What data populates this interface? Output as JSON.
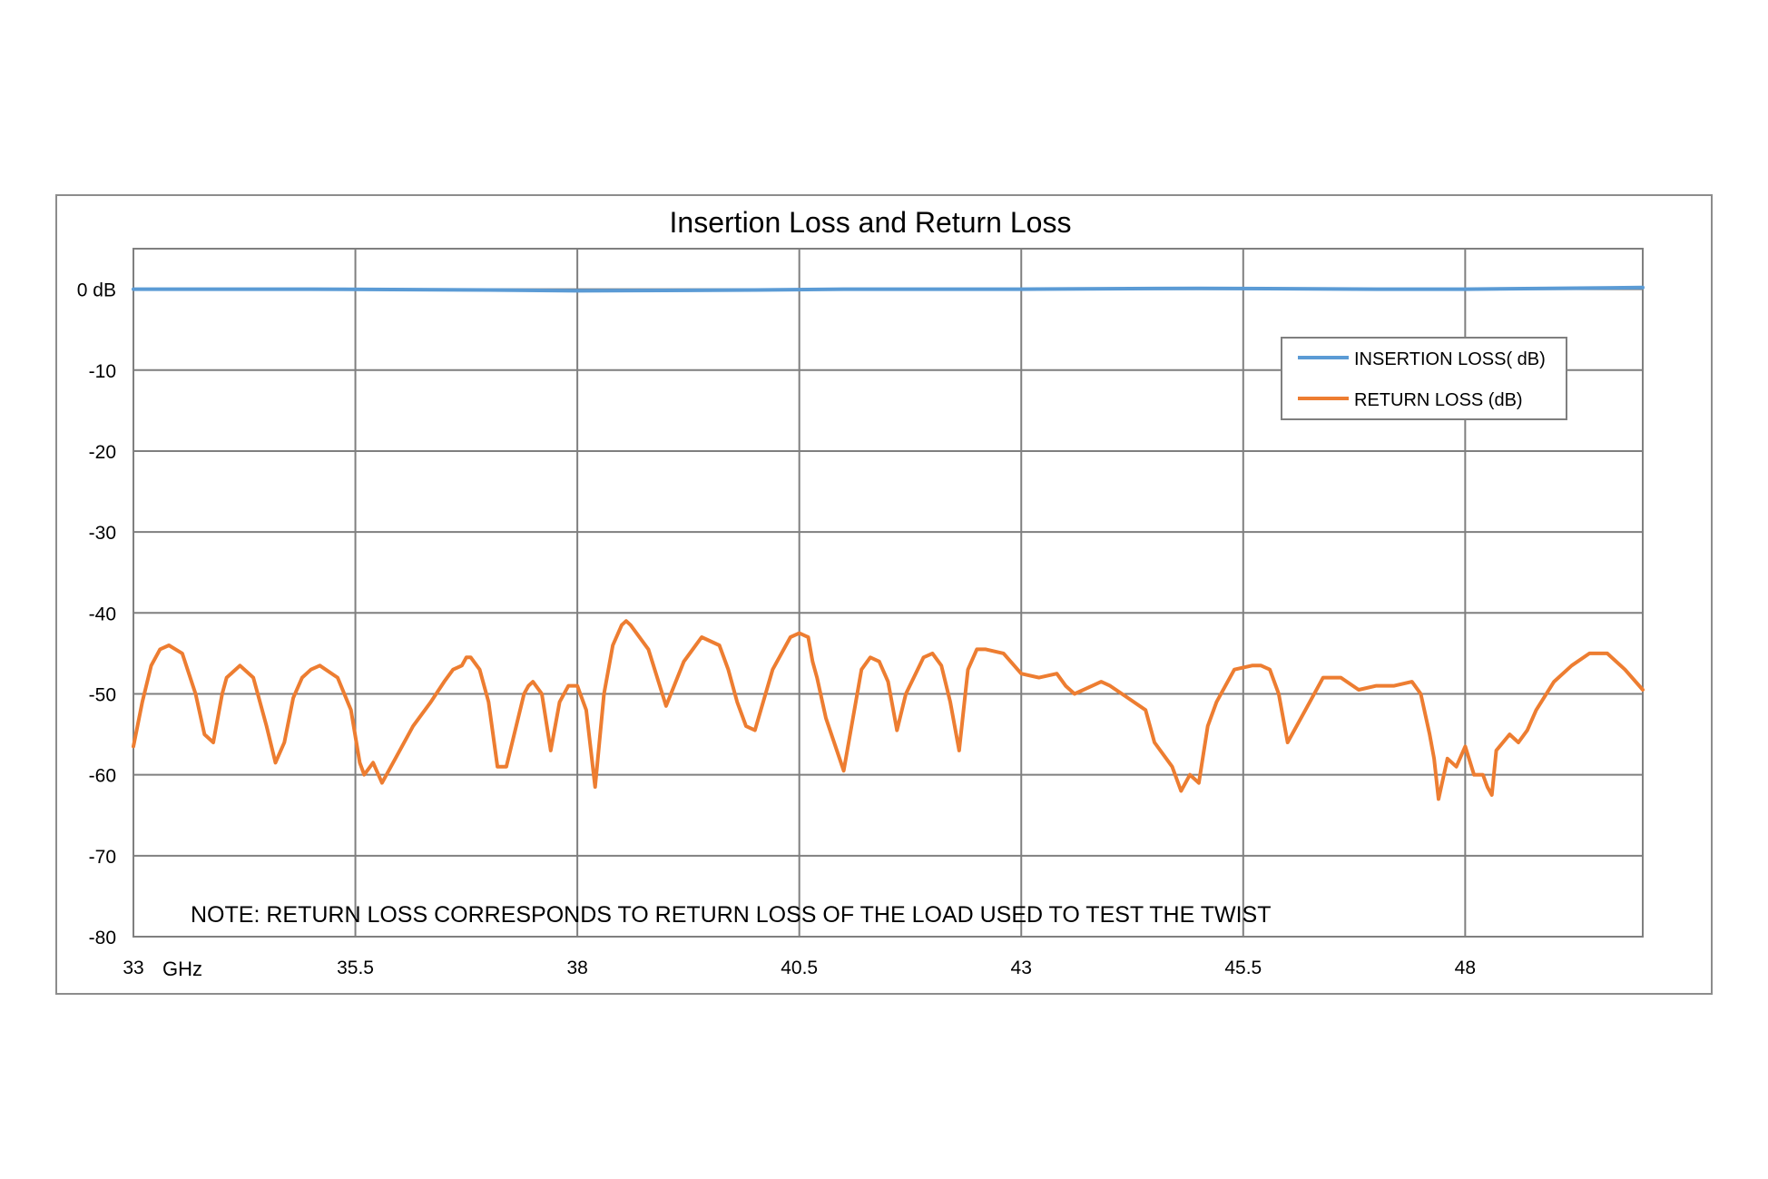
{
  "chart_data": {
    "type": "line",
    "title": "Insertion Loss and Return Loss",
    "x_unit_label": "GHz",
    "xlim": [
      33,
      50
    ],
    "ylim": [
      -80,
      5
    ],
    "grid": true,
    "legend_position": "top-right",
    "x_ticks": [
      {
        "value": 33,
        "label": "33"
      },
      {
        "value": 35.5,
        "label": "35.5"
      },
      {
        "value": 38,
        "label": "38"
      },
      {
        "value": 40.5,
        "label": "40.5"
      },
      {
        "value": 43,
        "label": "43"
      },
      {
        "value": 45.5,
        "label": "45.5"
      },
      {
        "value": 48,
        "label": "48"
      }
    ],
    "y_ticks": [
      {
        "value": 0,
        "label": "0 dB"
      },
      {
        "value": -10,
        "label": "-10"
      },
      {
        "value": -20,
        "label": "-20"
      },
      {
        "value": -30,
        "label": "-30"
      },
      {
        "value": -40,
        "label": "-40"
      },
      {
        "value": -50,
        "label": "-50"
      },
      {
        "value": -60,
        "label": "-60"
      },
      {
        "value": -70,
        "label": "-70"
      },
      {
        "value": -80,
        "label": "-80"
      }
    ],
    "annotation": "NOTE:  RETURN LOSS CORRESPONDS TO RETURN LOSS OF THE LOAD USED TO TEST THE TWIST",
    "series": [
      {
        "name": "INSERTION LOSS( dB)",
        "color": "#5b9bd5",
        "x": [
          33,
          35,
          37,
          38,
          40,
          41,
          43,
          45,
          47,
          48,
          50
        ],
        "y": [
          0,
          0,
          -0.1,
          -0.2,
          -0.1,
          0,
          0,
          0.1,
          0,
          0,
          0.2
        ]
      },
      {
        "name": "RETURN LOSS (dB)",
        "color": "#ed7d31",
        "x": [
          33.0,
          33.1,
          33.2,
          33.3,
          33.4,
          33.55,
          33.7,
          33.8,
          33.9,
          33.95,
          34.0,
          34.05,
          34.1,
          34.2,
          34.35,
          34.5,
          34.6,
          34.7,
          34.8,
          34.9,
          35.0,
          35.1,
          35.3,
          35.45,
          35.55,
          35.6,
          35.7,
          35.8,
          35.95,
          36.15,
          36.35,
          36.5,
          36.6,
          36.7,
          36.75,
          36.8,
          36.9,
          37.0,
          37.1,
          37.2,
          37.4,
          37.45,
          37.5,
          37.6,
          37.7,
          37.8,
          37.9,
          38.0,
          38.1,
          38.2,
          38.3,
          38.4,
          38.5,
          38.55,
          38.6,
          38.8,
          39.0,
          39.2,
          39.4,
          39.6,
          39.7,
          39.8,
          39.9,
          40.0,
          40.2,
          40.4,
          40.5,
          40.6,
          40.65,
          40.7,
          40.8,
          41.0,
          41.2,
          41.3,
          41.4,
          41.5,
          41.6,
          41.7,
          41.9,
          42.0,
          42.1,
          42.2,
          42.3,
          42.4,
          42.5,
          42.6,
          42.8,
          43.0,
          43.2,
          43.4,
          43.5,
          43.6,
          43.8,
          43.9,
          44.0,
          44.2,
          44.4,
          44.5,
          44.6,
          44.7,
          44.8,
          44.9,
          45.0,
          45.1,
          45.2,
          45.4,
          45.6,
          45.7,
          45.8,
          45.9,
          46.0,
          46.2,
          46.4,
          46.6,
          46.8,
          47.0,
          47.2,
          47.4,
          47.5,
          47.6,
          47.65,
          47.7,
          47.8,
          47.9,
          48.0,
          48.1,
          48.2,
          48.25,
          48.3,
          48.35,
          48.5,
          48.6,
          48.7,
          48.8,
          49.0,
          49.2,
          49.4,
          49.6,
          49.8,
          50.0
        ],
        "y": [
          -56.5,
          -51,
          -46.5,
          -44.5,
          -44,
          -45,
          -50,
          -55,
          -56,
          -53,
          -50,
          -48,
          -47.5,
          -46.5,
          -48,
          -54,
          -58.5,
          -56,
          -50.5,
          -48,
          -47,
          -46.5,
          -48,
          -52,
          -58.5,
          -60,
          -58.5,
          -61,
          -58,
          -54,
          -51,
          -48.5,
          -47,
          -46.5,
          -45.5,
          -45.5,
          -47,
          -51,
          -59,
          -59,
          -50,
          -49,
          -48.5,
          -50,
          -57,
          -51,
          -49,
          -49,
          -52,
          -61.5,
          -50,
          -44,
          -41.5,
          -41,
          -41.5,
          -44.5,
          -51.5,
          -46,
          -43,
          -44,
          -47,
          -51,
          -54,
          -54.5,
          -47,
          -43,
          -42.5,
          -43,
          -46,
          -48,
          -53,
          -59.5,
          -47,
          -45.5,
          -46,
          -48.5,
          -54.5,
          -50,
          -45.5,
          -45,
          -46.5,
          -51,
          -57,
          -47,
          -44.5,
          -44.5,
          -45,
          -47.5,
          -48,
          -47.5,
          -49,
          -50,
          -49,
          -48.5,
          -49,
          -50.5,
          -52,
          -56,
          -57.5,
          -59,
          -62,
          -60,
          -61,
          -54,
          -51,
          -47,
          -46.5,
          -46.5,
          -47,
          -50,
          -56,
          -52,
          -48,
          -48,
          -49.5,
          -49,
          -49,
          -48.5,
          -50,
          -55,
          -58,
          -63,
          -58,
          -59,
          -56.5,
          -60,
          -60,
          -61.5,
          -62.5,
          -57,
          -55,
          -56,
          -54.5,
          -52,
          -48.5,
          -46.5,
          -45,
          -45,
          -47,
          -49.5
        ]
      }
    ]
  }
}
